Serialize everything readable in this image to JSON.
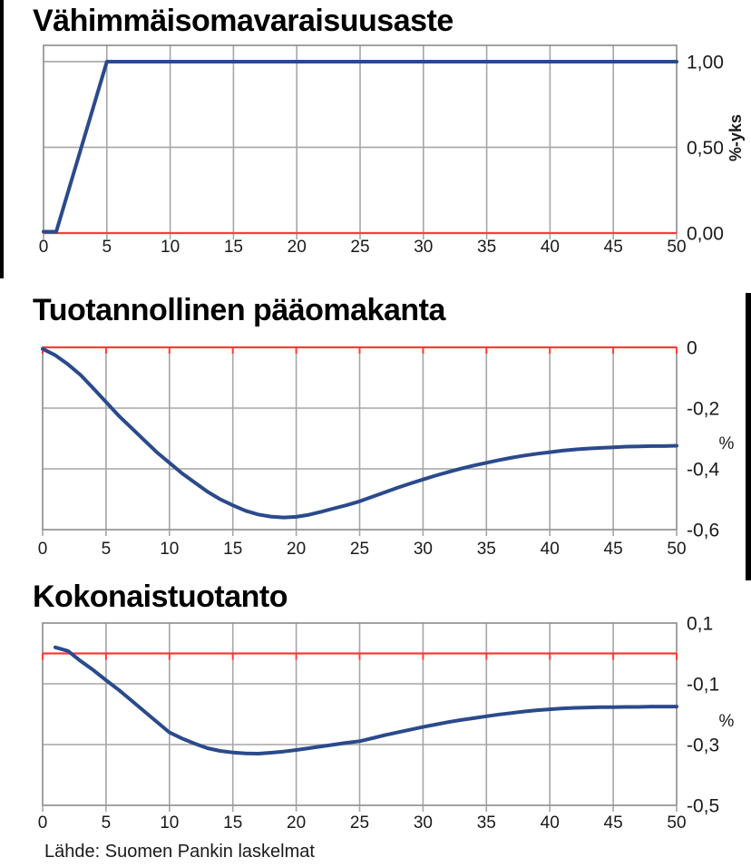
{
  "footer": {
    "source": "Lähde: Suomen Pankin laskelmat"
  },
  "colors": {
    "line_blue": "#2B4A8C",
    "line_red": "#FF3B3B",
    "grid": "#A6A6A6",
    "border": "#8A8A8A",
    "text": "#1A1A1A",
    "edge_bar": "#000000"
  },
  "chart_data": [
    {
      "type": "line",
      "title": "Vähimmäisomavaraisuusaste",
      "unit_label": "%-yks",
      "xlim": [
        0,
        50
      ],
      "ylim": [
        0,
        1.095
      ],
      "x_ticks": [
        0,
        5,
        10,
        15,
        20,
        25,
        30,
        35,
        40,
        45,
        50
      ],
      "y_ticks": [
        {
          "value": 1.0,
          "label": "1,00"
        },
        {
          "value": 0.5,
          "label": "0,50"
        },
        {
          "value": 0.0,
          "label": "0,00"
        }
      ],
      "zero_line": 0.0,
      "red_ticks": false,
      "grid": true,
      "legend": "none",
      "series": [
        {
          "name": "vahimmaisomavaraisuusaste",
          "color_key": "line_blue",
          "points": [
            [
              0,
              0.008
            ],
            [
              1,
              0.008
            ],
            [
              5,
              1.0
            ],
            [
              50,
              1.0
            ]
          ]
        }
      ]
    },
    {
      "type": "line",
      "title": "Tuotannollinen pääomakanta",
      "unit_label": "%",
      "xlim": [
        0,
        50
      ],
      "ylim": [
        -0.6,
        0
      ],
      "x_ticks": [
        0,
        5,
        10,
        15,
        20,
        25,
        30,
        35,
        40,
        45,
        50
      ],
      "y_ticks": [
        {
          "value": 0.0,
          "label": "0"
        },
        {
          "value": -0.2,
          "label": "-0,2"
        },
        {
          "value": -0.4,
          "label": "-0,4"
        },
        {
          "value": -0.6,
          "label": "-0,6"
        }
      ],
      "zero_line": 0.0,
      "red_ticks": true,
      "grid": true,
      "legend": "none",
      "series": [
        {
          "name": "tuotannollinen-paaomakanta",
          "color_key": "line_blue",
          "points": [
            [
              0,
              -0.005
            ],
            [
              1,
              -0.026
            ],
            [
              2,
              -0.056
            ],
            [
              3,
              -0.091
            ],
            [
              4,
              -0.135
            ],
            [
              5,
              -0.18
            ],
            [
              6,
              -0.225
            ],
            [
              7,
              -0.265
            ],
            [
              8,
              -0.305
            ],
            [
              9,
              -0.345
            ],
            [
              10,
              -0.38
            ],
            [
              11,
              -0.415
            ],
            [
              12,
              -0.445
            ],
            [
              13,
              -0.475
            ],
            [
              14,
              -0.5
            ],
            [
              15,
              -0.52
            ],
            [
              16,
              -0.538
            ],
            [
              17,
              -0.55
            ],
            [
              18,
              -0.557
            ],
            [
              19,
              -0.56
            ],
            [
              20,
              -0.558
            ],
            [
              21,
              -0.551
            ],
            [
              22,
              -0.541
            ],
            [
              23,
              -0.53
            ],
            [
              24,
              -0.519
            ],
            [
              25,
              -0.507
            ],
            [
              26,
              -0.492
            ],
            [
              27,
              -0.477
            ],
            [
              28,
              -0.462
            ],
            [
              29,
              -0.448
            ],
            [
              30,
              -0.435
            ],
            [
              31,
              -0.422
            ],
            [
              32,
              -0.41
            ],
            [
              33,
              -0.399
            ],
            [
              34,
              -0.389
            ],
            [
              35,
              -0.38
            ],
            [
              36,
              -0.371
            ],
            [
              37,
              -0.363
            ],
            [
              38,
              -0.356
            ],
            [
              39,
              -0.35
            ],
            [
              40,
              -0.345
            ],
            [
              41,
              -0.34
            ],
            [
              42,
              -0.336
            ],
            [
              43,
              -0.333
            ],
            [
              44,
              -0.331
            ],
            [
              45,
              -0.329
            ],
            [
              46,
              -0.327
            ],
            [
              47,
              -0.326
            ],
            [
              48,
              -0.325
            ],
            [
              49,
              -0.325
            ],
            [
              50,
              -0.324
            ]
          ]
        }
      ]
    },
    {
      "type": "line",
      "title": "Kokonaistuotanto",
      "unit_label": "%",
      "xlim": [
        0,
        50
      ],
      "ylim": [
        -0.5,
        0.1
      ],
      "x_ticks": [
        0,
        5,
        10,
        15,
        20,
        25,
        30,
        35,
        40,
        45,
        50
      ],
      "y_ticks": [
        {
          "value": 0.1,
          "label": "0,1"
        },
        {
          "value": -0.1,
          "label": "-0,1"
        },
        {
          "value": -0.3,
          "label": "-0,3"
        },
        {
          "value": -0.5,
          "label": "-0,5"
        }
      ],
      "zero_line": 0.0,
      "red_ticks": true,
      "grid": true,
      "legend": "none",
      "series": [
        {
          "name": "kokonaistuotanto",
          "color_key": "line_blue",
          "points": [
            [
              1,
              0.02
            ],
            [
              2,
              0.008
            ],
            [
              3,
              -0.025
            ],
            [
              4,
              -0.055
            ],
            [
              5,
              -0.088
            ],
            [
              6,
              -0.12
            ],
            [
              7,
              -0.155
            ],
            [
              8,
              -0.19
            ],
            [
              9,
              -0.225
            ],
            [
              10,
              -0.26
            ],
            [
              11,
              -0.28
            ],
            [
              12,
              -0.297
            ],
            [
              13,
              -0.312
            ],
            [
              14,
              -0.321
            ],
            [
              15,
              -0.326
            ],
            [
              16,
              -0.329
            ],
            [
              17,
              -0.33
            ],
            [
              18,
              -0.327
            ],
            [
              19,
              -0.323
            ],
            [
              20,
              -0.318
            ],
            [
              21,
              -0.312
            ],
            [
              22,
              -0.306
            ],
            [
              23,
              -0.3
            ],
            [
              24,
              -0.294
            ],
            [
              25,
              -0.289
            ],
            [
              26,
              -0.279
            ],
            [
              27,
              -0.269
            ],
            [
              28,
              -0.26
            ],
            [
              29,
              -0.251
            ],
            [
              30,
              -0.242
            ],
            [
              31,
              -0.234
            ],
            [
              32,
              -0.226
            ],
            [
              33,
              -0.219
            ],
            [
              34,
              -0.213
            ],
            [
              35,
              -0.207
            ],
            [
              36,
              -0.201
            ],
            [
              37,
              -0.196
            ],
            [
              38,
              -0.191
            ],
            [
              39,
              -0.187
            ],
            [
              40,
              -0.184
            ],
            [
              41,
              -0.181
            ],
            [
              42,
              -0.179
            ],
            [
              43,
              -0.178
            ],
            [
              44,
              -0.177
            ],
            [
              45,
              -0.177
            ],
            [
              46,
              -0.176
            ],
            [
              47,
              -0.176
            ],
            [
              48,
              -0.175
            ],
            [
              49,
              -0.175
            ],
            [
              50,
              -0.175
            ]
          ]
        }
      ]
    }
  ]
}
